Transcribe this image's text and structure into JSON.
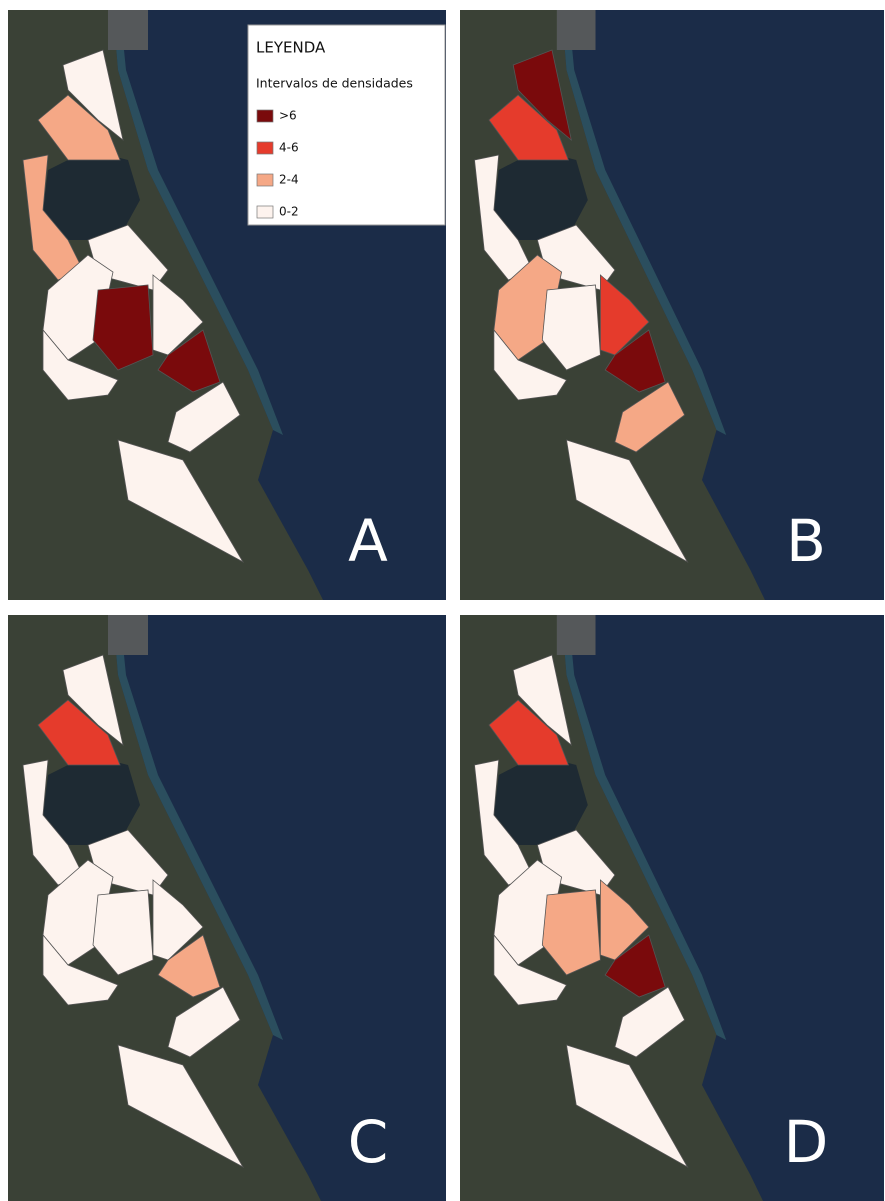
{
  "legend": {
    "title": "LEYENDA",
    "subtitle": "Intervalos de densidades",
    "items": [
      {
        "label": ">6",
        "color": "#7a0a0c"
      },
      {
        "label": "4-6",
        "color": "#e53b2c"
      },
      {
        "label": "2-4",
        "color": "#f5a886"
      },
      {
        "label": "0-2",
        "color": "#fdf3ee"
      }
    ]
  },
  "panels": [
    {
      "label": "A"
    },
    {
      "label": "B"
    },
    {
      "label": "C"
    },
    {
      "label": "D"
    }
  ]
}
